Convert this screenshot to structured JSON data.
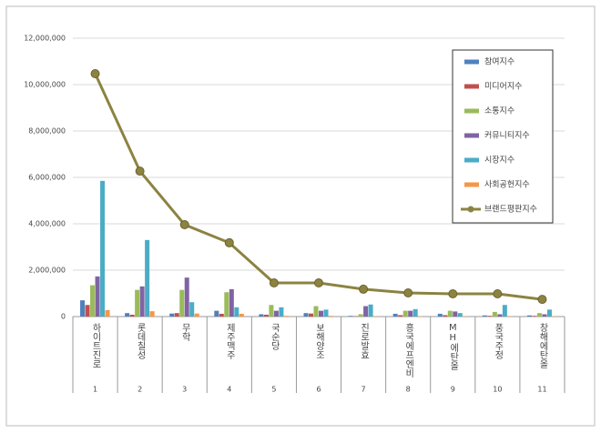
{
  "chart_data": {
    "type": "bar",
    "categories": [
      "하이트진로",
      "롯데칠성",
      "무학",
      "제주맥주",
      "국순당",
      "보해양조",
      "진로발효",
      "흥국에프엔비",
      "MH에탄올",
      "풍국주정",
      "창해에탄올"
    ],
    "ranks": [
      1,
      2,
      3,
      4,
      5,
      6,
      7,
      8,
      9,
      10,
      11
    ],
    "ylim": [
      0,
      12000000
    ],
    "yticks": [
      0,
      {
        "value": 2000000,
        "label": "2,000,000"
      },
      {
        "value": 4000000,
        "label": "4,000,000"
      },
      {
        "value": 6000000,
        "label": "6,000,000"
      },
      {
        "value": 8000000,
        "label": "8,000,000"
      },
      {
        "value": 10000000,
        "label": "10,000,000"
      },
      {
        "value": 12000000,
        "label": "12,000,000"
      }
    ],
    "grid": true,
    "series": [
      {
        "name": "참여지수",
        "color": "#4f81bd",
        "type": "bar",
        "values": [
          700000,
          150000,
          130000,
          250000,
          100000,
          150000,
          30000,
          120000,
          120000,
          50000,
          50000
        ]
      },
      {
        "name": "미디어지수",
        "color": "#c0504d",
        "type": "bar",
        "values": [
          500000,
          80000,
          150000,
          120000,
          80000,
          130000,
          20000,
          60000,
          60000,
          30000,
          30000
        ]
      },
      {
        "name": "소통지수",
        "color": "#9bbb59",
        "type": "bar",
        "values": [
          1350000,
          1150000,
          1150000,
          1050000,
          500000,
          450000,
          100000,
          250000,
          250000,
          200000,
          150000
        ]
      },
      {
        "name": "커뮤니티지수",
        "color": "#8064a2",
        "type": "bar",
        "values": [
          1730000,
          1300000,
          1680000,
          1180000,
          250000,
          250000,
          450000,
          250000,
          220000,
          100000,
          100000
        ]
      },
      {
        "name": "시장지수",
        "color": "#4bacc6",
        "type": "bar",
        "values": [
          5850000,
          3300000,
          620000,
          400000,
          400000,
          300000,
          520000,
          320000,
          150000,
          500000,
          300000
        ]
      },
      {
        "name": "사회공헌지수",
        "color": "#f79646",
        "type": "bar",
        "values": [
          280000,
          230000,
          130000,
          120000,
          30000,
          30000,
          20000,
          20000,
          20000,
          20000,
          20000
        ]
      },
      {
        "name": "브랜드평판지수",
        "color": "#8c8341",
        "type": "line",
        "values": [
          10470000,
          6270000,
          3960000,
          3180000,
          1450000,
          1450000,
          1180000,
          1020000,
          980000,
          980000,
          740000
        ]
      }
    ]
  }
}
